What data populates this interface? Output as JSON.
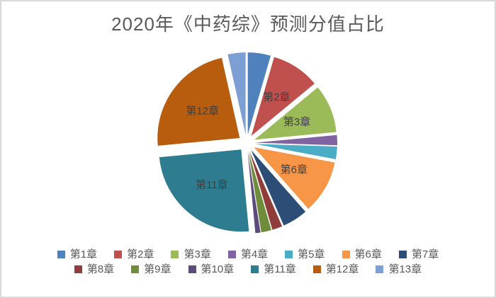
{
  "title": "2020年《中药综》预测分值占比",
  "chart_data": {
    "type": "pie",
    "title": "2020年《中药综》预测分值占比",
    "categories": [
      "第1章",
      "第2章",
      "第3章",
      "第4章",
      "第5章",
      "第6章",
      "第7章",
      "第8章",
      "第9章",
      "第10章",
      "第11章",
      "第12章",
      "第13章"
    ],
    "values": [
      4.5,
      9.5,
      9.5,
      2,
      2.5,
      10.5,
      5,
      2,
      2,
      1,
      25,
      23,
      3.5
    ],
    "value_unit": "percent of total (estimated from slice angles; no numeric labels shown)",
    "colors": [
      "#4F81BD",
      "#C0504D",
      "#9BBB59",
      "#8064A2",
      "#4BACC6",
      "#F79646",
      "#2C4D75",
      "#903C3A",
      "#6F8C3A",
      "#5D4B79",
      "#2E7C90",
      "#B85C0E",
      "#7D9FD3"
    ],
    "labeled_slices": [
      "第2章",
      "第3章",
      "第6章",
      "第11章",
      "第12章"
    ],
    "start_angle_deg": 0,
    "direction": "clockwise",
    "exploded": true,
    "legend_position": "bottom",
    "legend_rows": [
      7,
      6
    ]
  },
  "style": {
    "title_color": "#595959",
    "slice_label_color": "#3F3F3F",
    "legend_text_color": "#595959",
    "frame_border_color": "#D9D9D9",
    "background_color": "#FFFFFF"
  }
}
